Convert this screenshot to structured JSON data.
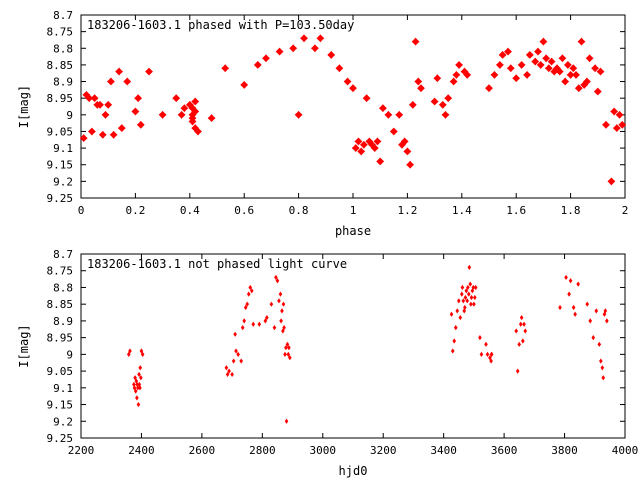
{
  "chart_data": [
    {
      "type": "scatter",
      "title": "183206-1603.1 phased with P=103.50day",
      "xlabel": "phase",
      "ylabel": "I[mag]",
      "xlim": [
        0,
        2
      ],
      "ylim": [
        9.25,
        8.7
      ],
      "y_inverted": true,
      "grid": false,
      "marker": "star",
      "color": "#ff0000",
      "x_ticks": [
        "0",
        "0.2",
        "0.4",
        "0.6",
        "0.8",
        "1",
        "1.2",
        "1.4",
        "1.6",
        "1.8",
        "2"
      ],
      "y_ticks": [
        "8.7",
        "8.75",
        "8.8",
        "8.85",
        "8.9",
        "8.95",
        "9",
        "9.05",
        "9.1",
        "9.15",
        "9.2",
        "9.25"
      ],
      "series": [
        {
          "x": [
            0.01,
            0.02,
            0.03,
            0.04,
            0.05,
            0.06,
            0.07,
            0.08,
            0.09,
            0.1,
            0.11,
            0.12,
            0.14,
            0.15,
            0.17,
            0.2,
            0.21,
            0.22,
            0.25,
            0.3,
            0.35,
            0.37,
            0.38,
            0.4,
            0.41,
            0.41,
            0.41,
            0.41,
            0.42,
            0.42,
            0.42,
            0.43,
            0.48,
            0.53,
            0.6,
            0.65,
            0.68,
            0.73,
            0.78,
            0.8,
            0.82,
            0.86,
            0.88,
            0.92,
            0.95,
            0.98,
            1.0,
            1.01,
            1.02,
            1.03,
            1.04,
            1.05,
            1.06,
            1.07,
            1.08,
            1.09,
            1.1,
            1.11,
            1.13,
            1.15,
            1.17,
            1.18,
            1.19,
            1.2,
            1.21,
            1.22,
            1.23,
            1.24,
            1.25,
            1.3,
            1.31,
            1.33,
            1.34,
            1.35,
            1.37,
            1.38,
            1.39,
            1.41,
            1.42,
            1.5,
            1.52,
            1.54,
            1.55,
            1.57,
            1.58,
            1.6,
            1.62,
            1.64,
            1.65,
            1.67,
            1.68,
            1.69,
            1.7,
            1.71,
            1.72,
            1.73,
            1.74,
            1.75,
            1.76,
            1.77,
            1.78,
            1.79,
            1.8,
            1.81,
            1.82,
            1.83,
            1.84,
            1.85,
            1.86,
            1.87,
            1.89,
            1.9,
            1.91,
            1.93,
            1.95,
            1.96,
            1.97,
            1.98,
            1.99
          ],
          "y": [
            9.07,
            8.94,
            8.95,
            9.05,
            8.95,
            8.97,
            8.97,
            9.06,
            9.0,
            8.97,
            8.9,
            9.06,
            8.87,
            9.04,
            8.9,
            8.99,
            8.95,
            9.03,
            8.87,
            9.0,
            8.95,
            9.0,
            8.98,
            8.97,
            8.98,
            9.0,
            9.01,
            9.02,
            8.99,
            9.04,
            8.96,
            9.05,
            9.01,
            8.86,
            8.91,
            8.85,
            8.83,
            8.81,
            8.8,
            9.0,
            8.77,
            8.8,
            8.77,
            8.82,
            8.86,
            8.9,
            8.92,
            9.1,
            9.08,
            9.11,
            9.09,
            8.95,
            9.08,
            9.09,
            9.1,
            9.08,
            9.14,
            8.98,
            9.0,
            9.05,
            9.0,
            9.09,
            9.08,
            9.11,
            9.15,
            8.97,
            8.78,
            8.9,
            8.92,
            8.96,
            8.89,
            8.97,
            9.0,
            8.95,
            8.9,
            8.88,
            8.85,
            8.87,
            8.88,
            8.92,
            8.88,
            8.85,
            8.82,
            8.81,
            8.86,
            8.89,
            8.85,
            8.88,
            8.82,
            8.84,
            8.81,
            8.85,
            8.78,
            8.83,
            8.86,
            8.84,
            8.87,
            8.86,
            8.87,
            8.83,
            8.9,
            8.85,
            8.88,
            8.86,
            8.88,
            8.92,
            8.78,
            8.91,
            8.9,
            8.83,
            8.86,
            8.93,
            8.87,
            9.03,
            9.2,
            8.99,
            9.04,
            9.0,
            9.03
          ]
        }
      ]
    },
    {
      "type": "scatter",
      "title": "183206-1603.1 not phased light curve",
      "xlabel": "hjd0",
      "ylabel": "I[mag]",
      "xlim": [
        2200,
        4000
      ],
      "ylim": [
        9.25,
        8.7
      ],
      "y_inverted": true,
      "grid": false,
      "marker": "diamond",
      "color": "#ff0000",
      "x_ticks": [
        "2200",
        "2400",
        "2600",
        "2800",
        "3000",
        "3200",
        "3400",
        "3600",
        "3800",
        "4000"
      ],
      "y_ticks": [
        "8.7",
        "8.75",
        "8.8",
        "8.85",
        "8.9",
        "8.95",
        "9",
        "9.05",
        "9.1",
        "9.15",
        "9.2",
        "9.25"
      ],
      "series": [
        {
          "x": [
            2358,
            2362,
            2375,
            2377,
            2379,
            2381,
            2383,
            2385,
            2386,
            2388,
            2390,
            2392,
            2393,
            2395,
            2396,
            2398,
            2400,
            2404,
            2681,
            2685,
            2690,
            2700,
            2705,
            2710,
            2713,
            2720,
            2730,
            2735,
            2740,
            2745,
            2750,
            2755,
            2760,
            2765,
            2770,
            2790,
            2810,
            2815,
            2830,
            2840,
            2845,
            2850,
            2855,
            2860,
            2862,
            2865,
            2868,
            2870,
            2872,
            2875,
            2878,
            2880,
            2883,
            2886,
            2888,
            2891,
            3426,
            3430,
            3435,
            3440,
            3445,
            3450,
            3455,
            3460,
            3462,
            3465,
            3468,
            3470,
            3472,
            3475,
            3478,
            3480,
            3483,
            3485,
            3488,
            3490,
            3492,
            3495,
            3498,
            3500,
            3503,
            3506,
            3520,
            3525,
            3540,
            3545,
            3553,
            3557,
            3558,
            3559,
            3640,
            3645,
            3650,
            3655,
            3658,
            3662,
            3666,
            3670,
            3785,
            3805,
            3815,
            3820,
            3830,
            3835,
            3845,
            3875,
            3885,
            3895,
            3905,
            3915,
            3920,
            3925,
            3928,
            3932,
            3935,
            3940
          ],
          "y": [
            9.0,
            8.99,
            9.09,
            9.1,
            9.07,
            9.11,
            9.08,
            9.13,
            9.09,
            9.1,
            9.15,
            9.06,
            9.09,
            9.1,
            9.04,
            9.07,
            8.99,
            9.0,
            9.04,
            9.06,
            9.05,
            9.06,
            9.02,
            8.94,
            8.99,
            9.0,
            9.02,
            8.92,
            8.9,
            8.86,
            8.85,
            8.82,
            8.8,
            8.81,
            8.91,
            8.91,
            8.9,
            8.89,
            8.85,
            8.92,
            8.77,
            8.78,
            8.84,
            8.82,
            8.9,
            8.87,
            8.93,
            8.85,
            8.92,
            9.0,
            8.98,
            9.2,
            8.97,
            9.0,
            8.98,
            9.01,
            8.88,
            8.99,
            8.96,
            8.92,
            8.87,
            8.84,
            8.89,
            8.82,
            8.8,
            8.84,
            8.87,
            8.86,
            8.83,
            8.81,
            8.84,
            8.8,
            8.82,
            8.74,
            8.79,
            8.85,
            8.83,
            8.81,
            8.8,
            8.85,
            8.83,
            8.8,
            8.95,
            9.0,
            8.97,
            9.0,
            9.01,
            9.02,
            9.0,
            9.0,
            8.93,
            9.05,
            8.97,
            8.91,
            8.89,
            8.96,
            8.91,
            8.93,
            8.86,
            8.77,
            8.82,
            8.78,
            8.86,
            8.88,
            8.79,
            8.85,
            8.9,
            8.95,
            8.87,
            8.97,
            9.02,
            9.04,
            9.07,
            8.88,
            8.87,
            8.9
          ]
        }
      ]
    }
  ]
}
